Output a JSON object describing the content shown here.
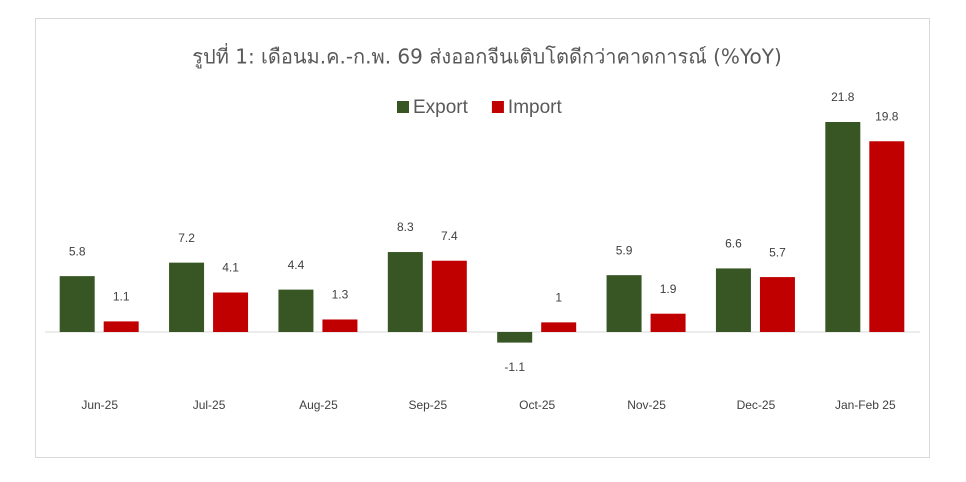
{
  "chart_data": {
    "type": "bar",
    "title": "รูปที่ 1: เดือนม.ค.-ก.พ. 69 ส่งออกจีนเติบโตดีกว่าคาดการณ์ (%YoY)",
    "categories": [
      "Jun-25",
      "Jul-25",
      "Aug-25",
      "Sep-25",
      "Oct-25",
      "Nov-25",
      "Dec-25",
      "Jan-Feb 25"
    ],
    "series": [
      {
        "name": "Export",
        "color": "#375623",
        "values": [
          5.8,
          7.2,
          4.4,
          8.3,
          -1.1,
          5.9,
          6.6,
          21.8
        ]
      },
      {
        "name": "Import",
        "color": "#c00000",
        "values": [
          1.1,
          4.1,
          1.3,
          7.4,
          1,
          1.9,
          5.7,
          19.8
        ]
      }
    ],
    "legend": "top"
  }
}
